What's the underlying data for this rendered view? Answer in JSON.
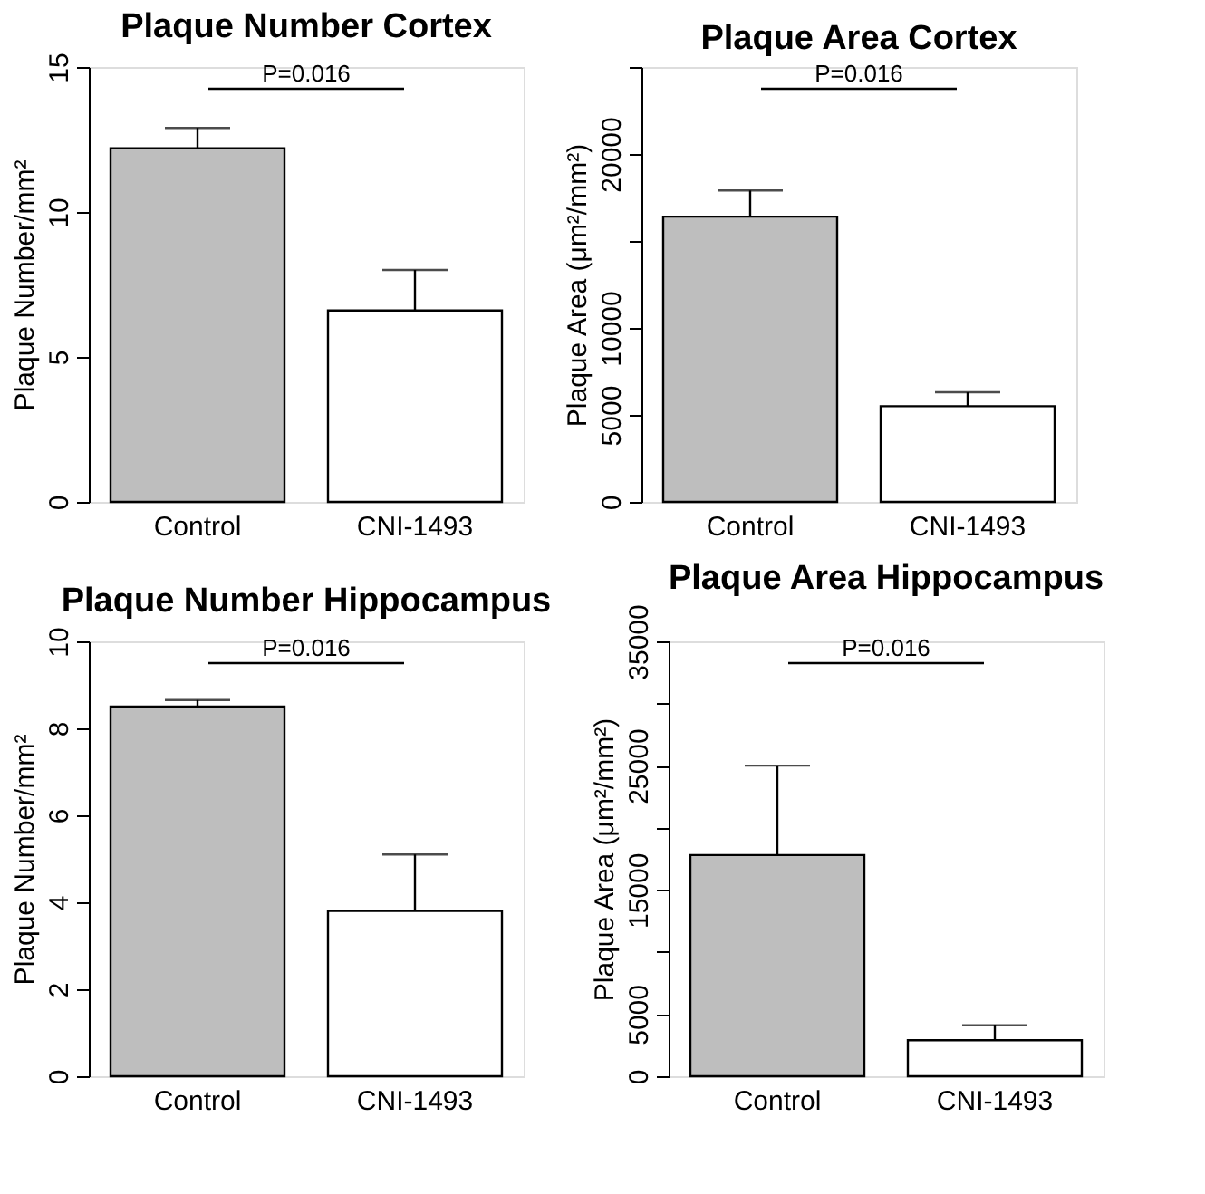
{
  "chart_data": [
    {
      "type": "bar",
      "title": "Plaque Number Cortex",
      "ylabel": "Plaque Number/mm²",
      "categories": [
        "Control",
        "CNI-1493"
      ],
      "values": [
        12.2,
        6.6
      ],
      "colors": [
        "#bebebe",
        "#ffffff"
      ],
      "errors": [
        [
          12.2,
          12.9
        ],
        [
          6.6,
          8.0
        ]
      ],
      "ylim": [
        0,
        15
      ],
      "yticks": [
        0,
        5,
        10,
        15
      ],
      "grid": false,
      "annotations": [
        "P=0.016"
      ]
    },
    {
      "type": "bar",
      "title": "Plaque Area Cortex",
      "ylabel": "Plaque Area (μm²/mm²)",
      "categories": [
        "Control",
        "CNI-1493"
      ],
      "values": [
        16400,
        5500
      ],
      "colors": [
        "#bebebe",
        "#ffffff"
      ],
      "errors": [
        [
          16400,
          17900
        ],
        [
          5500,
          6300
        ]
      ],
      "ylim": [
        0,
        25000
      ],
      "yticks": [
        0,
        5000,
        10000,
        {
          "value": 15000,
          "label": null
        },
        20000,
        {
          "value": 25000,
          "label": null
        }
      ],
      "grid": false,
      "annotations": [
        "P=0.016"
      ]
    },
    {
      "type": "bar",
      "title": "Plaque Number Hippocampus",
      "ylabel": "Plaque Number/mm²",
      "categories": [
        "Control",
        "CNI-1493"
      ],
      "values": [
        8.5,
        3.8
      ],
      "colors": [
        "#bebebe",
        "#ffffff"
      ],
      "errors": [
        [
          8.5,
          8.65
        ],
        [
          3.8,
          5.1
        ]
      ],
      "ylim": [
        0,
        10
      ],
      "yticks": [
        0,
        2,
        4,
        6,
        8,
        10
      ],
      "grid": false,
      "annotations": [
        "P=0.016"
      ]
    },
    {
      "type": "bar",
      "title": "Plaque Area Hippocampus",
      "ylabel": "Plaque Area (μm²/mm²)",
      "categories": [
        "Control",
        "CNI-1493"
      ],
      "values": [
        17800,
        2900
      ],
      "colors": [
        "#bebebe",
        "#ffffff"
      ],
      "errors": [
        [
          17800,
          25000
        ],
        [
          2900,
          4100
        ]
      ],
      "ylim": [
        0,
        35000
      ],
      "yticks": [
        0,
        5000,
        {
          "value": 10000,
          "label": null
        },
        15000,
        {
          "value": 20000,
          "label": null
        },
        25000,
        {
          "value": 30000,
          "label": null
        },
        35000
      ],
      "grid": false,
      "annotations": [
        "P=0.016"
      ]
    }
  ]
}
